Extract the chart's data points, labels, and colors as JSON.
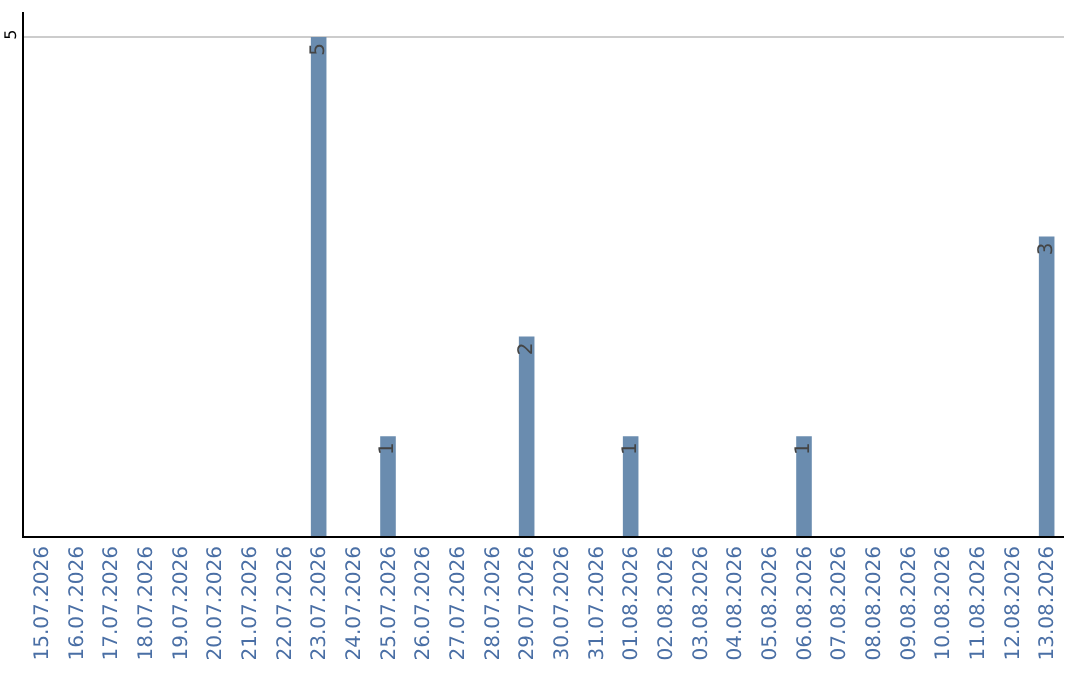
{
  "chart_data": {
    "type": "bar",
    "categories": [
      "15.07.2026",
      "16.07.2026",
      "17.07.2026",
      "18.07.2026",
      "19.07.2026",
      "20.07.2026",
      "21.07.2026",
      "22.07.2026",
      "23.07.2026",
      "24.07.2026",
      "25.07.2026",
      "26.07.2026",
      "27.07.2026",
      "28.07.2026",
      "29.07.2026",
      "30.07.2026",
      "31.07.2026",
      "01.08.2026",
      "02.08.2026",
      "03.08.2026",
      "04.08.2026",
      "05.08.2026",
      "06.08.2026",
      "07.08.2026",
      "08.08.2026",
      "09.08.2026",
      "10.08.2026",
      "11.08.2026",
      "12.08.2026",
      "13.08.2026"
    ],
    "values": [
      null,
      null,
      null,
      null,
      null,
      null,
      null,
      null,
      5,
      null,
      1,
      null,
      null,
      null,
      2,
      null,
      null,
      1,
      null,
      null,
      null,
      null,
      1,
      null,
      null,
      null,
      null,
      null,
      null,
      3
    ],
    "color": "#6a8caf",
    "ylim": [
      0,
      5.25
    ],
    "yticks": [
      5
    ],
    "grid": "y",
    "data_labels": true
  }
}
